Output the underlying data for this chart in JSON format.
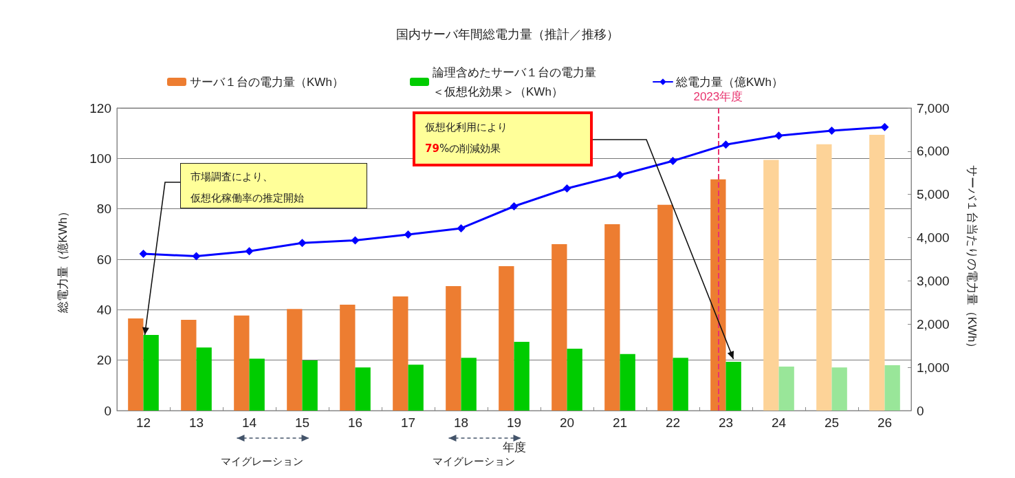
{
  "chart_data": {
    "type": "bar",
    "title": "国内サーバ年間総電力量（推計／推移）",
    "categories": [
      "12",
      "13",
      "14",
      "15",
      "16",
      "17",
      "18",
      "19",
      "20",
      "21",
      "22",
      "23",
      "24",
      "25",
      "26"
    ],
    "series": [
      {
        "name": "サーバ１台の電力量（KWh）",
        "axis": "y2",
        "color": "#ed7d31",
        "colors": [
          "#ed7d31",
          "#ed7d31",
          "#ed7d31",
          "#ed7d31",
          "#ed7d31",
          "#ed7d31",
          "#ed7d31",
          "#ed7d31",
          "#ed7d31",
          "#ed7d31",
          "#ed7d31",
          "#ed7d31",
          "#fdd398",
          "#fdd398",
          "#fdd398"
        ],
        "values": [
          2130,
          2100,
          2200,
          2350,
          2450,
          2640,
          2880,
          3340,
          3850,
          4310,
          4760,
          5350,
          5800,
          6160,
          6380
        ]
      },
      {
        "name": "論理含めたサーバ１台の電力量＜仮想化効果＞（KWh）",
        "axis": "y2",
        "color": "#00cc00",
        "colors": [
          "#00cc00",
          "#00cc00",
          "#00cc00",
          "#00cc00",
          "#00cc00",
          "#00cc00",
          "#00cc00",
          "#00cc00",
          "#00cc00",
          "#00cc00",
          "#00cc00",
          "#00cc00",
          "#99e699",
          "#99e699",
          "#99e699"
        ],
        "values": [
          1750,
          1460,
          1200,
          1160,
          1000,
          1060,
          1220,
          1590,
          1430,
          1310,
          1220,
          1130,
          1020,
          1000,
          1050
        ]
      },
      {
        "name": "総電力量（億KWh）",
        "type": "line",
        "color": "#0000ff",
        "marker": "diamond",
        "line_style": "solid",
        "values": [
          62.2,
          61.2,
          63.2,
          66.5,
          67.5,
          69.8,
          72.3,
          81.0,
          88.1,
          93.4,
          99.0,
          105.5,
          109.0,
          111.0,
          112.4
        ]
      }
    ],
    "xlabel": "年度",
    "ylabel": "総電力量（億KWh）",
    "y2label": "サーバ１台当たりの電力量（KWh）",
    "ylim": [
      0,
      120
    ],
    "yticks": [
      0,
      20,
      40,
      60,
      80,
      100,
      120
    ],
    "y2lim": [
      0,
      7000
    ],
    "y2ticks": [
      0,
      {
        "value": 1000,
        "label": "1,000"
      },
      {
        "value": 2000,
        "label": "2,000"
      },
      {
        "value": 3000,
        "label": "3,000"
      },
      {
        "value": 4000,
        "label": "4,000"
      },
      {
        "value": 5000,
        "label": "5,000"
      },
      {
        "value": 6000,
        "label": "6,000"
      },
      {
        "value": 7000,
        "label": "7,000"
      }
    ],
    "ref_lines": [
      {
        "axis": "x",
        "value": "23",
        "label": "2023年度",
        "color": "#e8336e",
        "line_style": "dashed"
      }
    ],
    "annotations": [
      {
        "text": "市場調査により、仮想化稼働率の推定開始",
        "x": "12",
        "y": 30
      },
      "仮想化利用により79%の削減効果",
      "マイグレーション",
      "マイグレーション"
    ],
    "grid": "y",
    "legend": "top"
  }
}
